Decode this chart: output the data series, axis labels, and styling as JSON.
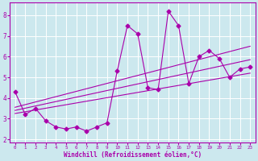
{
  "xlabel": "Windchill (Refroidissement éolien,°C)",
  "ylabel": "",
  "bg_color": "#cce8ee",
  "line_color": "#aa00aa",
  "grid_color": "#ffffff",
  "x_data": [
    0,
    1,
    2,
    3,
    4,
    5,
    6,
    7,
    8,
    9,
    10,
    11,
    12,
    13,
    14,
    15,
    16,
    17,
    18,
    19,
    20,
    21,
    22,
    23
  ],
  "y_data": [
    4.3,
    3.2,
    3.5,
    2.9,
    2.6,
    2.5,
    2.6,
    2.4,
    2.6,
    2.8,
    5.3,
    7.5,
    7.1,
    4.5,
    4.4,
    8.2,
    7.5,
    4.7,
    6.0,
    6.3,
    5.9,
    5.0,
    5.4,
    5.5
  ],
  "reg_lines": [
    {
      "x0": 0,
      "y0": 3.55,
      "x1": 23,
      "y1": 6.5
    },
    {
      "x0": 0,
      "y0": 3.4,
      "x1": 23,
      "y1": 5.85
    },
    {
      "x0": 0,
      "y0": 3.25,
      "x1": 23,
      "y1": 5.2
    }
  ],
  "xlim": [
    -0.5,
    23.5
  ],
  "ylim": [
    1.85,
    8.6
  ],
  "xticks": [
    0,
    1,
    2,
    3,
    4,
    5,
    6,
    7,
    8,
    9,
    10,
    11,
    12,
    13,
    14,
    15,
    16,
    17,
    18,
    19,
    20,
    21,
    22,
    23
  ],
  "yticks": [
    2,
    3,
    4,
    5,
    6,
    7,
    8
  ],
  "marker": "D",
  "marker_size": 2.5,
  "line_width": 0.8
}
